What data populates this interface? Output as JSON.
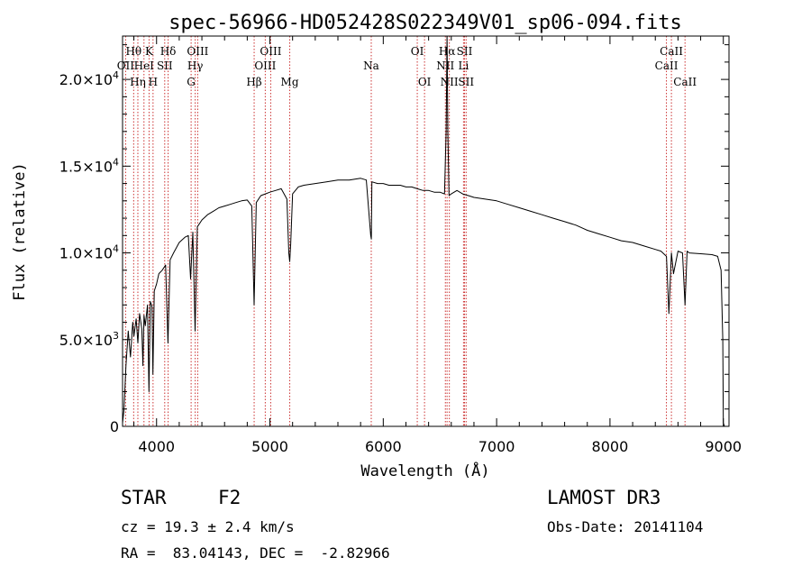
{
  "chart_data": {
    "type": "line",
    "title": "spec-56966-HD052428S022349V01_sp06-094.fits",
    "xlabel": "Wavelength (Å)",
    "ylabel": "Flux (relative)",
    "xlim": [
      3700,
      9050
    ],
    "ylim": [
      0,
      22500
    ],
    "x_ticks": [
      4000,
      5000,
      6000,
      7000,
      8000,
      9000
    ],
    "x_tick_labels": [
      "4000",
      "5000",
      "6000",
      "7000",
      "8000",
      "9000"
    ],
    "y_ticks": [
      0,
      5000,
      10000,
      15000,
      20000
    ],
    "y_tick_labels": [
      {
        "mant": "0",
        "exp": ""
      },
      {
        "mant": "5.0×10",
        "exp": "3"
      },
      {
        "mant": "1.0×10",
        "exp": "4"
      },
      {
        "mant": "1.5×10",
        "exp": "4"
      },
      {
        "mant": "2.0×10",
        "exp": "4"
      }
    ],
    "series": [
      {
        "name": "spectrum",
        "x": [
          3700,
          3712,
          3730,
          3750,
          3770,
          3790,
          3800,
          3820,
          3835,
          3850,
          3870,
          3880,
          3889,
          3900,
          3920,
          3933,
          3945,
          3960,
          3968,
          3980,
          4000,
          4020,
          4050,
          4080,
          4101,
          4120,
          4150,
          4200,
          4250,
          4280,
          4300,
          4320,
          4340,
          4360,
          4400,
          4450,
          4500,
          4550,
          4600,
          4650,
          4700,
          4750,
          4800,
          4840,
          4861,
          4880,
          4920,
          4960,
          5000,
          5050,
          5100,
          5150,
          5167,
          5175,
          5183,
          5200,
          5250,
          5300,
          5400,
          5500,
          5600,
          5700,
          5800,
          5850,
          5889,
          5895,
          5900,
          5950,
          6000,
          6050,
          6100,
          6150,
          6200,
          6250,
          6300,
          6350,
          6400,
          6450,
          6500,
          6540,
          6555,
          6563,
          6570,
          6580,
          6600,
          6650,
          6700,
          6750,
          6800,
          6900,
          7000,
          7100,
          7200,
          7300,
          7400,
          7500,
          7600,
          7700,
          7800,
          7900,
          8000,
          8100,
          8200,
          8300,
          8400,
          8450,
          8498,
          8520,
          8542,
          8560,
          8600,
          8640,
          8662,
          8680,
          8700,
          8800,
          8900,
          8950,
          8980,
          8995,
          9000,
          9010
        ],
        "y": [
          200,
          900,
          3500,
          5500,
          4000,
          6000,
          5200,
          6200,
          4800,
          6500,
          5600,
          3500,
          6400,
          5800,
          7000,
          2000,
          7200,
          6900,
          3000,
          7800,
          8200,
          8800,
          9000,
          9300,
          4800,
          9600,
          10000,
          10600,
          10900,
          11000,
          8500,
          11200,
          5500,
          11500,
          11900,
          12200,
          12400,
          12600,
          12700,
          12800,
          12900,
          13000,
          13050,
          12700,
          7000,
          12900,
          13300,
          13400,
          13500,
          13600,
          13700,
          13100,
          10000,
          9500,
          10500,
          13400,
          13800,
          13900,
          14000,
          14100,
          14200,
          14200,
          14300,
          14200,
          11000,
          10800,
          14100,
          14000,
          14000,
          13900,
          13900,
          13900,
          13800,
          13800,
          13700,
          13600,
          13600,
          13500,
          13500,
          13400,
          17000,
          22500,
          17000,
          13300,
          13400,
          13600,
          13400,
          13300,
          13200,
          13100,
          13000,
          12800,
          12600,
          12400,
          12200,
          12000,
          11800,
          11600,
          11300,
          11100,
          10900,
          10700,
          10600,
          10400,
          10200,
          10100,
          9800,
          6500,
          10000,
          8800,
          10100,
          10000,
          7000,
          10100,
          10000,
          9950,
          9900,
          9800,
          9000,
          5000,
          200,
          0
        ]
      }
    ],
    "line_markers": [
      {
        "name": "Hθ",
        "x": 3798,
        "row": 1
      },
      {
        "name": "OII",
        "x": 3727,
        "row": 2
      },
      {
        "name": "Hη",
        "x": 3835,
        "row": 3
      },
      {
        "name": "HeI",
        "x": 3889,
        "row": 2
      },
      {
        "name": "K",
        "x": 3934,
        "row": 1
      },
      {
        "name": "H",
        "x": 3969,
        "row": 3
      },
      {
        "name": "Hδ",
        "x": 4102,
        "row": 1
      },
      {
        "name": "SII",
        "x": 4072,
        "row": 2
      },
      {
        "name": "OIII",
        "x": 4363,
        "row": 1
      },
      {
        "name": "Hγ",
        "x": 4341,
        "row": 2
      },
      {
        "name": "G",
        "x": 4305,
        "row": 3
      },
      {
        "name": "Hβ",
        "x": 4861,
        "row": 3
      },
      {
        "name": "OIII",
        "x": 5007,
        "row": 1
      },
      {
        "name": "OIII",
        "x": 4959,
        "row": 2
      },
      {
        "name": "Mg",
        "x": 5175,
        "row": 3
      },
      {
        "name": "Na",
        "x": 5894,
        "row": 2
      },
      {
        "name": "OI",
        "x": 6300,
        "row": 1
      },
      {
        "name": "OI",
        "x": 6364,
        "row": 3
      },
      {
        "name": "Hα",
        "x": 6563,
        "row": 1
      },
      {
        "name": "NII",
        "x": 6548,
        "row": 2
      },
      {
        "name": "NII",
        "x": 6583,
        "row": 3
      },
      {
        "name": "SII",
        "x": 6717,
        "row": 1
      },
      {
        "name": "Li",
        "x": 6708,
        "row": 2
      },
      {
        "name": "SII",
        "x": 6731,
        "row": 3
      },
      {
        "name": "CaII",
        "x": 8542,
        "row": 1
      },
      {
        "name": "CaII",
        "x": 8498,
        "row": 2
      },
      {
        "name": "CaII",
        "x": 8662,
        "row": 3
      }
    ],
    "marker_color": "#cc3333"
  },
  "info": {
    "object_class": "STAR",
    "subclass": "F2",
    "survey": "LAMOST DR3",
    "velocity": "cz = 19.3 ± 2.4 km/s",
    "obs_date": "Obs-Date: 20141104",
    "coordinates": "RA =  83.04143, DEC =  -2.82966"
  }
}
